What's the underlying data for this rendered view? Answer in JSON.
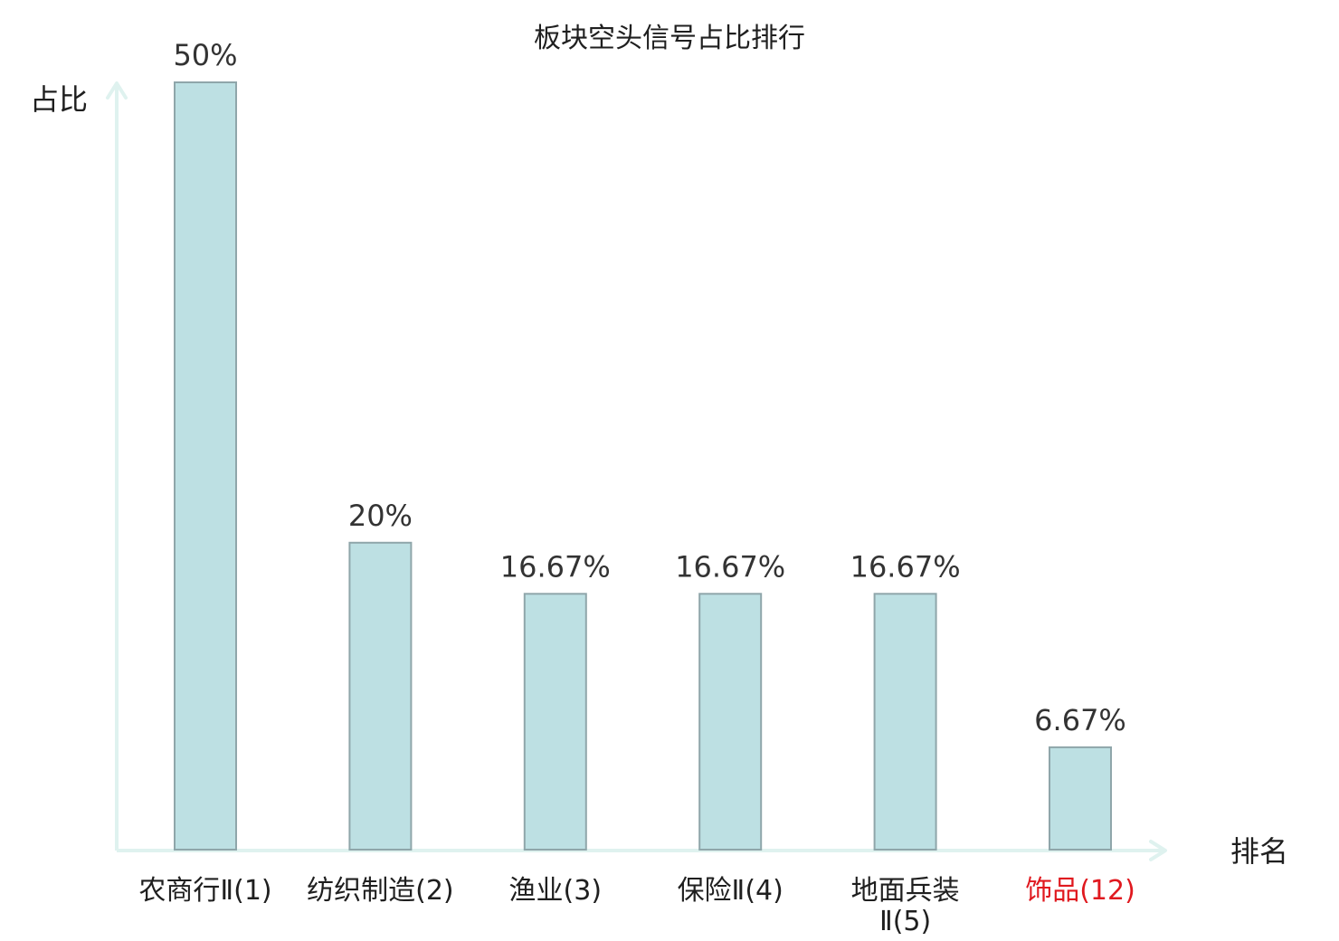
{
  "chart_data": {
    "type": "bar",
    "title": "板块空头信号占比排行",
    "ylabel": "占比",
    "xlabel": "排名",
    "ylim": [
      0,
      50
    ],
    "categories": [
      {
        "name": "农商行Ⅱ",
        "rank": "(1)",
        "lines": [
          "农商行Ⅱ(1)"
        ]
      },
      {
        "name": "纺织制造",
        "rank": "(2)",
        "lines": [
          "纺织制造(2)"
        ]
      },
      {
        "name": "渔业",
        "rank": "(3)",
        "lines": [
          "渔业(3)"
        ]
      },
      {
        "name": "保险Ⅱ",
        "rank": "(4)",
        "lines": [
          "保险Ⅱ(4)"
        ]
      },
      {
        "name": "地面兵装Ⅱ",
        "rank": "(5)",
        "lines": [
          "地面兵装",
          "Ⅱ(5)"
        ]
      },
      {
        "name": "饰品",
        "rank": "(12)",
        "lines": [
          "饰品(12)"
        ],
        "highlight": true
      }
    ],
    "values": [
      50,
      20,
      16.67,
      16.67,
      16.67,
      6.67
    ],
    "value_labels": [
      "50%",
      "20%",
      "16.67%",
      "16.67%",
      "16.67%",
      "6.67%"
    ],
    "grid": false,
    "legend": "none",
    "colors": {
      "bar_fill": "#bde0e3",
      "bar_stroke": "#8fa6aa",
      "axis": "#dff2ef",
      "highlight": "#e0191f",
      "text": "#1f1f1f"
    }
  }
}
